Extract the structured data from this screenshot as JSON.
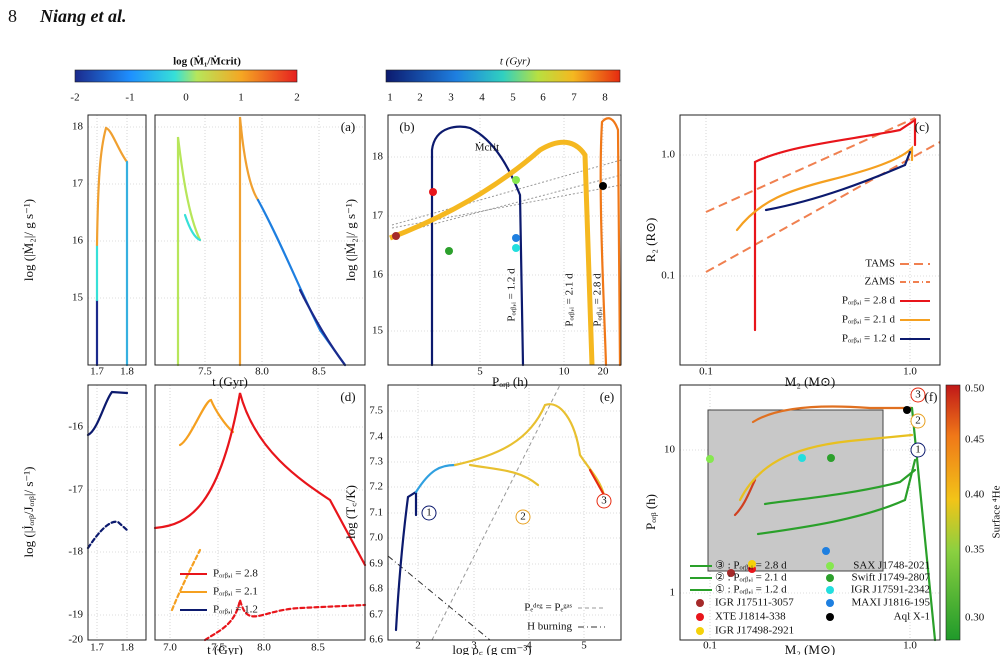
{
  "header": {
    "page_number": "8",
    "authors": "Niang et al."
  },
  "colorbar_mdot": {
    "title": "log (Ṁ₁/Ṁcrit)",
    "ticks": [
      "-2",
      "-1",
      "0",
      "1",
      "2"
    ]
  },
  "colorbar_time": {
    "title": "t (Gyr)",
    "ticks": [
      "1",
      "2",
      "3",
      "4",
      "5",
      "6",
      "7",
      "8"
    ]
  },
  "panel_a": {
    "label": "(a)",
    "ylabel": "log (|Ṁ₂|/ g s⁻¹)",
    "xlabel": "t (Gyr)",
    "yticks": [
      "18",
      "17",
      "16",
      "15"
    ],
    "xticks_left": [
      "1.7",
      "1.8"
    ],
    "xticks_right": [
      "7.5",
      "8.0",
      "8.5"
    ]
  },
  "panel_b": {
    "label": "(b)",
    "ylabel": "log (|Ṁ₂|/ g s⁻¹)",
    "xlabel": "Pₒᵣᵦ (h)",
    "yticks": [
      "18",
      "17",
      "16",
      "15"
    ],
    "xticks": [
      "5",
      "10",
      "20"
    ],
    "mdot_crit": "Ṁcrit",
    "period_labels": [
      "Pₒᵣᵦ,ᵢ = 1.2 d",
      "Pₒᵣᵦ,ᵢ = 2.1 d",
      "Pₒᵣᵦ,ᵢ = 2.8 d"
    ]
  },
  "panel_c": {
    "label": "(c)",
    "ylabel": "R₂ (R⊙)",
    "xlabel": "M₂ (M⊙)",
    "yticks": [
      "1.0",
      "0.1"
    ],
    "xticks": [
      "0.1",
      "1.0"
    ],
    "legend": [
      "TAMS",
      "ZAMS",
      "Pₒᵣᵦ,ᵢ = 2.8 d",
      "Pₒᵣᵦ,ᵢ = 2.1 d",
      "Pₒᵣᵦ,ᵢ = 1.2 d"
    ]
  },
  "panel_d": {
    "label": "(d)",
    "ylabel": "log (|J̇ₒᵣᵦ/Jₒᵣᵦ|/ s⁻¹)",
    "xlabel": "t (Gyr)",
    "yticks": [
      "-16",
      "-17",
      "-18",
      "-19",
      "-20"
    ],
    "xticks_left": [
      "1.7",
      "1.8"
    ],
    "xticks_right": [
      "7.0",
      "7.5",
      "8.0",
      "8.5"
    ],
    "legend": [
      "Pₒᵣᵦ,ᵢ = 2.8",
      "Pₒᵣᵦ,ᵢ = 2.1",
      "Pₒᵣᵦ,ᵢ = 1.2"
    ]
  },
  "panel_e": {
    "label": "(e)",
    "ylabel": "log (T꜀/K)",
    "xlabel": "log ρ꜀ (g cm⁻³)",
    "yticks": [
      "7.5",
      "7.4",
      "7.3",
      "7.2",
      "7.1",
      "7.0",
      "6.9",
      "6.8",
      "6.7",
      "6.6"
    ],
    "xticks": [
      "2",
      "3",
      "4",
      "5"
    ],
    "markers": [
      "1",
      "2",
      "3"
    ],
    "legend": [
      "Pₑᵈᵉᵍ = Pₑᵍᵃˢ",
      "H burning"
    ]
  },
  "panel_f": {
    "label": "(f)",
    "ylabel": "Pₒᵣᵦ (h)",
    "xlabel": "M₂ (M⊙)",
    "yticks": [
      "10",
      "1"
    ],
    "xticks": [
      "0.1",
      "1.0"
    ],
    "markers": [
      "3",
      "2",
      "1"
    ],
    "colorbar": {
      "title": "Surface ⁴He",
      "ticks": [
        "0.50",
        "0.45",
        "0.40",
        "0.35",
        "0.30"
      ]
    },
    "tracks": [
      "③ : Pₒᵣᵦ,ᵢ = 2.8 d",
      "② : Pₒᵣᵦ,ᵢ = 2.1 d",
      "① : Pₒᵣᵦ,ᵢ = 1.2 d"
    ],
    "sources": [
      {
        "name": "IGR J17511-3057",
        "color": "#a52a2a"
      },
      {
        "name": "XTE J1814-338",
        "color": "#e8151b"
      },
      {
        "name": "IGR J17498-2921",
        "color": "#f5d20a"
      },
      {
        "name": "SAX J1748-2021",
        "color": "#86e84f"
      },
      {
        "name": "Swift J1749-2807",
        "color": "#2ca02c"
      },
      {
        "name": "IGR J17591-2342",
        "color": "#22dede"
      },
      {
        "name": "MAXI J1816-195",
        "color": "#1e7fe0"
      },
      {
        "name": "Aql X-1",
        "color": "#000000"
      }
    ]
  }
}
